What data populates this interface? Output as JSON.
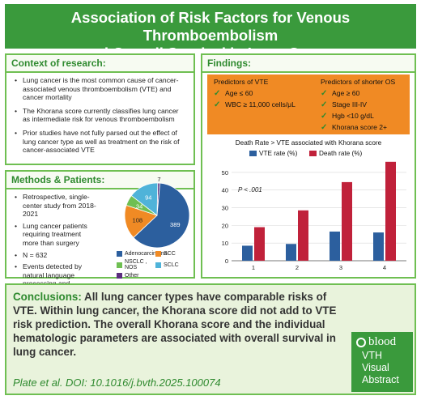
{
  "title": {
    "line1": "Association of Risk Factors for Venous Thromboembolism",
    "line2": "and Overall Survival in Lung Cancer"
  },
  "context": {
    "heading": "Context of research:",
    "bullets": [
      "Lung cancer is the most common cause of cancer-associated venous thromboembolism (VTE) and cancer mortality",
      "The Khorana score currently classifies lung cancer as intermediate risk for venous thromboembolism",
      "Prior studies have not fully parsed out the effect of lung cancer type as well as treatment on the risk of cancer-associated VTE"
    ]
  },
  "methods": {
    "heading": "Methods & Patients:",
    "bullets": [
      "Retrospective, single-center study from 2018-2021",
      "Lung cancer patients requiring treatment more than surgery",
      "N = 632",
      "Events detected by natural language processing and manually reviewed"
    ],
    "pie": {
      "slices": [
        {
          "label": "Adenocarcinoma",
          "value": 389,
          "color": "#2c5f9e"
        },
        {
          "label": "SCC",
          "value": 108,
          "color": "#f08a24"
        },
        {
          "label": "NSCLC , NOS",
          "value": 34,
          "color": "#6fbf52"
        },
        {
          "label": "SCLC",
          "value": 94,
          "color": "#4fb3d9"
        },
        {
          "label": "Other",
          "value": 7,
          "color": "#5b2d7e"
        }
      ]
    }
  },
  "findings": {
    "heading": "Findings:",
    "vte_predictors": {
      "title": "Predictors of VTE",
      "items": [
        "Age ≤ 60",
        "WBC ≥ 11,000 cells/μL"
      ]
    },
    "os_predictors": {
      "title": "Predictors of shorter OS",
      "items": [
        "Age ≥ 60",
        "Stage III-IV",
        "Hgb <10 g/dL",
        "Khorana score 2+"
      ]
    },
    "check_icon": "check-icon"
  },
  "chart_data": {
    "type": "bar",
    "title": "Death Rate > VTE associated with Khorana score",
    "categories": [
      "1",
      "2",
      "3",
      "4"
    ],
    "series": [
      {
        "name": "VTE rate (%)",
        "values": [
          8.5,
          9.5,
          16.5,
          16
        ],
        "color": "#2c5f9e"
      },
      {
        "name": "Death rate (%)",
        "values": [
          19,
          28.5,
          44.5,
          56
        ],
        "color": "#c0213a"
      }
    ],
    "ylim": [
      0,
      55
    ],
    "yticks": [
      0,
      10,
      20,
      30,
      40,
      50
    ],
    "annotation": "P < .001",
    "legend_position": "top"
  },
  "conclusions": {
    "lead": "Conclusions:",
    "text": " All lung cancer types have comparable risks of VTE. Within lung cancer, the Khorana score did not add to VTE risk prediction. The overall Khorana score and the individual hematologic parameters are associated with overall survival in lung cancer.",
    "citation": "Plate et al. DOI: 10.1016/j.bvth.2025.100074"
  },
  "badge": {
    "brand": "blood",
    "line1": "VTH",
    "line2": "Visual",
    "line3": "Abstract"
  }
}
